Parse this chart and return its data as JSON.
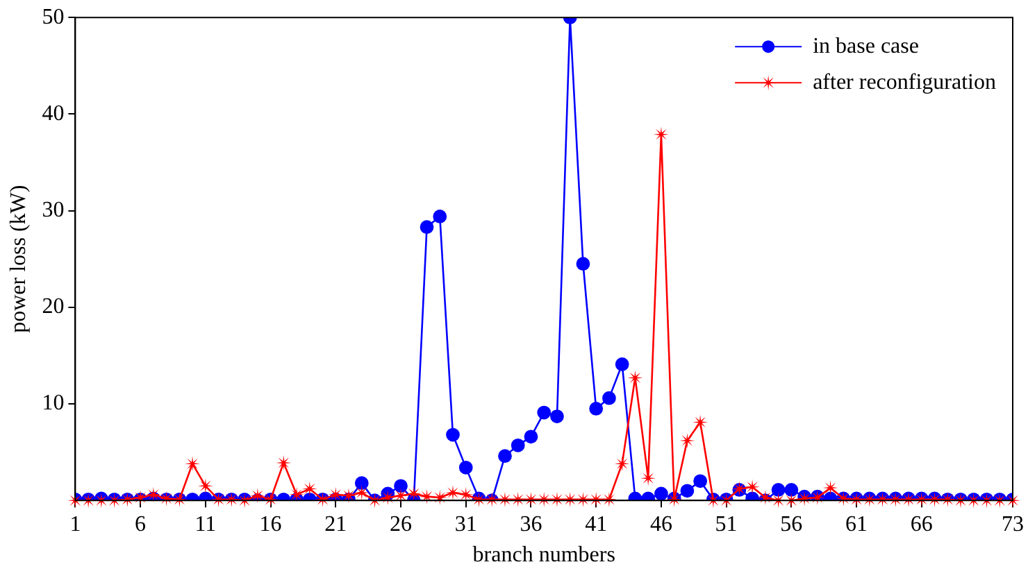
{
  "chart_data": {
    "type": "line",
    "xlabel": "branch numbers",
    "ylabel": "power loss (kW)",
    "x": [
      1,
      2,
      3,
      4,
      5,
      6,
      7,
      8,
      9,
      10,
      11,
      12,
      13,
      14,
      15,
      16,
      17,
      18,
      19,
      20,
      21,
      22,
      23,
      24,
      25,
      26,
      27,
      28,
      29,
      30,
      31,
      32,
      33,
      34,
      35,
      36,
      37,
      38,
      39,
      40,
      41,
      42,
      43,
      44,
      45,
      46,
      47,
      48,
      49,
      50,
      51,
      52,
      53,
      54,
      55,
      56,
      57,
      58,
      59,
      60,
      61,
      62,
      63,
      64,
      65,
      66,
      67,
      68,
      69,
      70,
      71,
      72,
      73
    ],
    "xlim": [
      1,
      73
    ],
    "xticks": [
      1,
      6,
      11,
      16,
      21,
      26,
      31,
      36,
      41,
      46,
      51,
      56,
      61,
      66,
      73
    ],
    "ylim": [
      0,
      50
    ],
    "yticks": [
      10,
      20,
      30,
      40,
      50
    ],
    "grid": false,
    "legend": "top right",
    "line_style": "solid",
    "series": [
      {
        "name": "in base case",
        "color": "#0000ff",
        "marker": "circle",
        "values": [
          0.1,
          0.1,
          0.2,
          0.1,
          0.1,
          0.1,
          0.2,
          0.1,
          0.1,
          0.1,
          0.2,
          0.1,
          0.1,
          0.1,
          0,
          0.1,
          0.1,
          0.1,
          0.1,
          0.1,
          0.1,
          0.1,
          1.8,
          0,
          0.7,
          1.5,
          0,
          28.3,
          29.4,
          6.8,
          3.4,
          0.2,
          0,
          4.6,
          5.7,
          6.6,
          9.1,
          8.7,
          50,
          24.5,
          9.5,
          10.6,
          14.1,
          0.2,
          0.2,
          0.7,
          0.2,
          1.0,
          2.0,
          0.1,
          0.1,
          1.1,
          0.2,
          0,
          1.1,
          1.1,
          0.4,
          0.4,
          0.2,
          0.2,
          0.2,
          0.2,
          0.2,
          0.2,
          0.2,
          0.2,
          0.2,
          0.1,
          0.1,
          0.1,
          0.1,
          0.1,
          0.1
        ]
      },
      {
        "name": "after reconfiguration",
        "color": "#ff0000",
        "marker": "star",
        "values": [
          0,
          0,
          0,
          0,
          0.1,
          0.3,
          0.6,
          0.2,
          0.1,
          3.8,
          1.5,
          0.1,
          0.1,
          0,
          0.5,
          0.1,
          3.9,
          0.6,
          1.2,
          0.1,
          0.6,
          0.5,
          0.8,
          0,
          0.3,
          0.5,
          0.7,
          0.4,
          0.3,
          0.8,
          0.6,
          0.1,
          0.1,
          0.1,
          0.1,
          0.1,
          0.1,
          0.1,
          0.1,
          0.1,
          0.1,
          0.1,
          3.8,
          12.7,
          2.3,
          37.9,
          0.1,
          6.2,
          8.1,
          0,
          0,
          1.2,
          1.4,
          0.3,
          0,
          0,
          0.2,
          0.3,
          1.3,
          0.2,
          0.1,
          0.1,
          0.1,
          0.1,
          0.1,
          0.1,
          0.1,
          0.1,
          0,
          0,
          0,
          0,
          0
        ]
      }
    ]
  }
}
